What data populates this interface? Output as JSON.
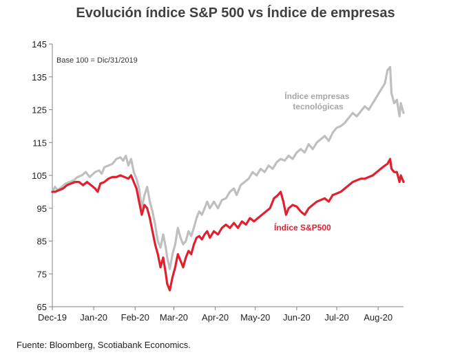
{
  "chart_data": {
    "type": "line",
    "title": "Evolución índice S&P 500 vs Índice de empresas",
    "xlabel": "",
    "ylabel": "",
    "base_note": "Base 100 = Dic/31/2019",
    "source": "Fuente: Bloomberg, Scotiabank Economics.",
    "ylim": [
      65,
      145
    ],
    "yticks": [
      65,
      75,
      85,
      95,
      105,
      115,
      125,
      135,
      145
    ],
    "xlim": [
      "2019-12-01",
      "2020-08-20"
    ],
    "xticks": [
      {
        "date": "2019-12-01",
        "label": "Dec-19"
      },
      {
        "date": "2020-01-01",
        "label": "Jan-20"
      },
      {
        "date": "2020-02-01",
        "label": "Feb-20"
      },
      {
        "date": "2020-03-01",
        "label": "Mar-20"
      },
      {
        "date": "2020-04-01",
        "label": "Apr-20"
      },
      {
        "date": "2020-05-01",
        "label": "May-20"
      },
      {
        "date": "2020-06-01",
        "label": "Jun-20"
      },
      {
        "date": "2020-07-01",
        "label": "Jul-20"
      },
      {
        "date": "2020-08-01",
        "label": "Aug-20"
      }
    ],
    "grid": false,
    "series": [
      {
        "name": "Índice empresas tecnológicas",
        "color": "#bfbfbf",
        "points": [
          [
            "2019-12-01",
            100
          ],
          [
            "2019-12-03",
            101.5
          ],
          [
            "2019-12-05",
            100.5
          ],
          [
            "2019-12-08",
            101.5
          ],
          [
            "2019-12-11",
            102.5
          ],
          [
            "2019-12-14",
            103
          ],
          [
            "2019-12-17",
            103.5
          ],
          [
            "2019-12-20",
            104.5
          ],
          [
            "2019-12-23",
            105
          ],
          [
            "2019-12-26",
            106
          ],
          [
            "2019-12-29",
            104.5
          ],
          [
            "2020-01-02",
            106
          ],
          [
            "2020-01-05",
            106.5
          ],
          [
            "2020-01-07",
            105.5
          ],
          [
            "2020-01-09",
            107.5
          ],
          [
            "2020-01-12",
            108
          ],
          [
            "2020-01-15",
            108.5
          ],
          [
            "2020-01-18",
            110
          ],
          [
            "2020-01-21",
            110.5
          ],
          [
            "2020-01-23",
            109.5
          ],
          [
            "2020-01-25",
            111
          ],
          [
            "2020-01-27",
            108
          ],
          [
            "2020-01-29",
            110
          ],
          [
            "2020-01-31",
            106
          ],
          [
            "2020-02-02",
            104
          ],
          [
            "2020-02-04",
            101
          ],
          [
            "2020-02-06",
            95
          ],
          [
            "2020-02-08",
            99
          ],
          [
            "2020-02-10",
            101.5
          ],
          [
            "2020-02-12",
            97
          ],
          [
            "2020-02-14",
            94
          ],
          [
            "2020-02-16",
            90
          ],
          [
            "2020-02-18",
            85
          ],
          [
            "2020-02-20",
            83
          ],
          [
            "2020-02-22",
            87
          ],
          [
            "2020-02-24",
            83
          ],
          [
            "2020-02-25",
            80
          ],
          [
            "2020-02-27",
            76.5
          ],
          [
            "2020-02-29",
            81
          ],
          [
            "2020-03-02",
            84
          ],
          [
            "2020-03-04",
            89
          ],
          [
            "2020-03-06",
            86
          ],
          [
            "2020-03-08",
            84
          ],
          [
            "2020-03-10",
            85
          ],
          [
            "2020-03-12",
            88
          ],
          [
            "2020-03-14",
            86.5
          ],
          [
            "2020-03-16",
            89
          ],
          [
            "2020-03-18",
            92
          ],
          [
            "2020-03-20",
            94
          ],
          [
            "2020-03-22",
            93
          ],
          [
            "2020-03-24",
            95
          ],
          [
            "2020-03-26",
            97
          ],
          [
            "2020-03-28",
            95
          ],
          [
            "2020-03-31",
            97
          ],
          [
            "2020-04-03",
            95
          ],
          [
            "2020-04-06",
            97.5
          ],
          [
            "2020-04-09",
            98
          ],
          [
            "2020-04-12",
            100
          ],
          [
            "2020-04-15",
            101
          ],
          [
            "2020-04-17",
            99
          ],
          [
            "2020-04-20",
            102
          ],
          [
            "2020-04-23",
            103
          ],
          [
            "2020-04-26",
            104
          ],
          [
            "2020-04-29",
            106
          ],
          [
            "2020-05-02",
            105
          ],
          [
            "2020-05-05",
            107
          ],
          [
            "2020-05-08",
            106
          ],
          [
            "2020-05-11",
            108
          ],
          [
            "2020-05-14",
            107
          ],
          [
            "2020-05-17",
            109
          ],
          [
            "2020-05-20",
            110
          ],
          [
            "2020-05-23",
            109.5
          ],
          [
            "2020-05-26",
            111
          ],
          [
            "2020-05-29",
            110
          ],
          [
            "2020-06-01",
            112
          ],
          [
            "2020-06-04",
            113
          ],
          [
            "2020-06-07",
            112
          ],
          [
            "2020-06-10",
            114.5
          ],
          [
            "2020-06-13",
            113
          ],
          [
            "2020-06-16",
            115
          ],
          [
            "2020-06-19",
            116
          ],
          [
            "2020-06-22",
            117
          ],
          [
            "2020-06-25",
            115.5
          ],
          [
            "2020-06-28",
            118
          ],
          [
            "2020-07-01",
            119.5
          ],
          [
            "2020-07-04",
            120
          ],
          [
            "2020-07-07",
            121
          ],
          [
            "2020-07-10",
            122.5
          ],
          [
            "2020-07-13",
            124
          ],
          [
            "2020-07-16",
            123
          ],
          [
            "2020-07-19",
            124.5
          ],
          [
            "2020-07-22",
            126
          ],
          [
            "2020-07-25",
            125
          ],
          [
            "2020-07-28",
            127
          ],
          [
            "2020-07-31",
            129
          ],
          [
            "2020-08-03",
            131
          ],
          [
            "2020-08-06",
            133
          ],
          [
            "2020-08-08",
            137
          ],
          [
            "2020-08-10",
            138
          ],
          [
            "2020-08-11",
            130
          ],
          [
            "2020-08-13",
            127
          ],
          [
            "2020-08-15",
            128
          ],
          [
            "2020-08-17",
            123
          ],
          [
            "2020-08-18",
            127
          ],
          [
            "2020-08-20",
            124
          ]
        ]
      },
      {
        "name": "Índice S&P500",
        "color": "#e0202e",
        "points": [
          [
            "2019-12-01",
            100
          ],
          [
            "2019-12-03",
            100
          ],
          [
            "2019-12-06",
            100.5
          ],
          [
            "2019-12-09",
            101
          ],
          [
            "2019-12-12",
            102
          ],
          [
            "2019-12-15",
            102.5
          ],
          [
            "2019-12-18",
            103
          ],
          [
            "2019-12-21",
            103
          ],
          [
            "2019-12-24",
            102
          ],
          [
            "2019-12-27",
            103
          ],
          [
            "2019-12-30",
            102
          ],
          [
            "2020-01-02",
            101
          ],
          [
            "2020-01-04",
            100
          ],
          [
            "2020-01-06",
            102.5
          ],
          [
            "2020-01-09",
            103
          ],
          [
            "2020-01-12",
            104
          ],
          [
            "2020-01-15",
            104.5
          ],
          [
            "2020-01-18",
            104.5
          ],
          [
            "2020-01-21",
            105
          ],
          [
            "2020-01-24",
            104.5
          ],
          [
            "2020-01-27",
            104
          ],
          [
            "2020-01-29",
            105
          ],
          [
            "2020-01-31",
            103
          ],
          [
            "2020-02-02",
            101
          ],
          [
            "2020-02-04",
            97
          ],
          [
            "2020-02-06",
            93
          ],
          [
            "2020-02-08",
            96
          ],
          [
            "2020-02-10",
            95
          ],
          [
            "2020-02-12",
            92
          ],
          [
            "2020-02-14",
            88
          ],
          [
            "2020-02-16",
            84
          ],
          [
            "2020-02-18",
            81
          ],
          [
            "2020-02-20",
            77
          ],
          [
            "2020-02-22",
            80
          ],
          [
            "2020-02-24",
            75
          ],
          [
            "2020-02-25",
            72
          ],
          [
            "2020-02-27",
            70
          ],
          [
            "2020-02-29",
            74
          ],
          [
            "2020-03-02",
            77
          ],
          [
            "2020-03-04",
            81
          ],
          [
            "2020-03-06",
            79
          ],
          [
            "2020-03-08",
            77
          ],
          [
            "2020-03-10",
            80
          ],
          [
            "2020-03-12",
            82
          ],
          [
            "2020-03-14",
            81
          ],
          [
            "2020-03-16",
            84
          ],
          [
            "2020-03-18",
            86
          ],
          [
            "2020-03-20",
            86.5
          ],
          [
            "2020-03-22",
            85.5
          ],
          [
            "2020-03-24",
            87
          ],
          [
            "2020-03-26",
            88
          ],
          [
            "2020-03-28",
            86
          ],
          [
            "2020-03-31",
            88
          ],
          [
            "2020-04-03",
            87
          ],
          [
            "2020-04-06",
            89
          ],
          [
            "2020-04-09",
            90
          ],
          [
            "2020-04-12",
            89
          ],
          [
            "2020-04-15",
            90.5
          ],
          [
            "2020-04-18",
            89
          ],
          [
            "2020-04-21",
            91
          ],
          [
            "2020-04-24",
            90
          ],
          [
            "2020-04-27",
            92
          ],
          [
            "2020-04-30",
            91
          ],
          [
            "2020-05-03",
            92
          ],
          [
            "2020-05-06",
            93
          ],
          [
            "2020-05-09",
            94
          ],
          [
            "2020-05-12",
            95
          ],
          [
            "2020-05-15",
            98
          ],
          [
            "2020-05-18",
            99
          ],
          [
            "2020-05-20",
            100
          ],
          [
            "2020-05-22",
            97
          ],
          [
            "2020-05-24",
            93
          ],
          [
            "2020-05-26",
            95
          ],
          [
            "2020-05-29",
            96
          ],
          [
            "2020-06-01",
            95.5
          ],
          [
            "2020-06-04",
            94
          ],
          [
            "2020-06-07",
            93
          ],
          [
            "2020-06-10",
            95
          ],
          [
            "2020-06-13",
            96
          ],
          [
            "2020-06-16",
            97
          ],
          [
            "2020-06-19",
            97.5
          ],
          [
            "2020-06-22",
            98
          ],
          [
            "2020-06-25",
            97
          ],
          [
            "2020-06-28",
            99
          ],
          [
            "2020-07-01",
            99.5
          ],
          [
            "2020-07-04",
            100
          ],
          [
            "2020-07-07",
            101
          ],
          [
            "2020-07-10",
            102
          ],
          [
            "2020-07-13",
            103
          ],
          [
            "2020-07-16",
            103.5
          ],
          [
            "2020-07-19",
            104
          ],
          [
            "2020-07-22",
            104
          ],
          [
            "2020-07-25",
            104.5
          ],
          [
            "2020-07-28",
            105
          ],
          [
            "2020-07-31",
            106
          ],
          [
            "2020-08-03",
            107
          ],
          [
            "2020-08-06",
            108
          ],
          [
            "2020-08-08",
            108.5
          ],
          [
            "2020-08-10",
            110
          ],
          [
            "2020-08-11",
            107
          ],
          [
            "2020-08-13",
            106
          ],
          [
            "2020-08-15",
            106
          ],
          [
            "2020-08-17",
            103
          ],
          [
            "2020-08-18",
            105
          ],
          [
            "2020-08-20",
            103
          ]
        ]
      }
    ]
  }
}
